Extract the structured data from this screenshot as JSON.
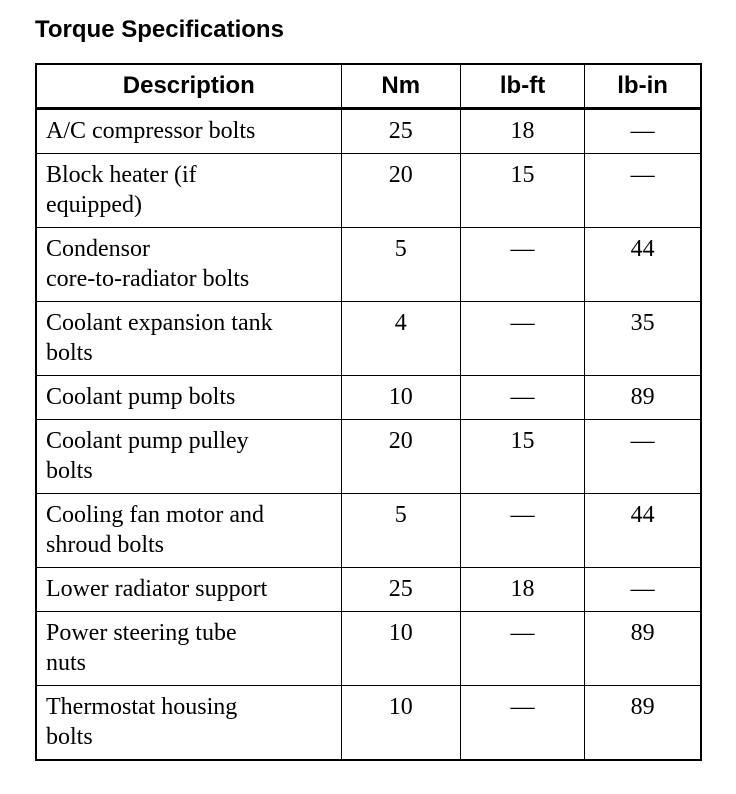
{
  "title": "Torque Specifications",
  "columns": [
    "Description",
    "Nm",
    "lb-ft",
    "lb-in"
  ],
  "rows": [
    {
      "description": "A/C compressor bolts",
      "nm": "25",
      "lbft": "18",
      "lbin": "—"
    },
    {
      "description": "Block heater (if equipped)",
      "nm": "20",
      "lbft": "15",
      "lbin": "—"
    },
    {
      "description": "Condensor core-to-radiator bolts",
      "nm": "5",
      "lbft": "—",
      "lbin": "44"
    },
    {
      "description": "Coolant expansion tank bolts",
      "nm": "4",
      "lbft": "—",
      "lbin": "35"
    },
    {
      "description": "Coolant pump bolts",
      "nm": "10",
      "lbft": "—",
      "lbin": "89"
    },
    {
      "description": "Coolant pump pulley bolts",
      "nm": "20",
      "lbft": "15",
      "lbin": "—"
    },
    {
      "description": "Cooling fan motor and shroud bolts",
      "nm": "5",
      "lbft": "—",
      "lbin": "44"
    },
    {
      "description": "Lower radiator support",
      "nm": "25",
      "lbft": "18",
      "lbin": "—"
    },
    {
      "description": "Power steering tube nuts",
      "nm": "10",
      "lbft": "—",
      "lbin": "89"
    },
    {
      "description": "Thermostat housing bolts",
      "nm": "10",
      "lbft": "—",
      "lbin": "89"
    }
  ]
}
